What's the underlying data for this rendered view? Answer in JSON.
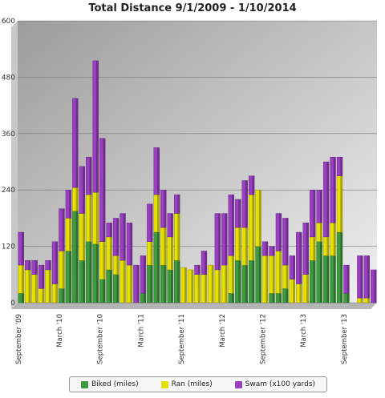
{
  "chart_data": {
    "type": "bar",
    "stacked": true,
    "title": "Total Distance 9/1/2009 - 1/10/2014",
    "xlabel": "",
    "ylabel": "",
    "ylim": [
      0,
      600
    ],
    "yticks": [
      0,
      120,
      240,
      360,
      480,
      600
    ],
    "grid": true,
    "legend_position": "bottom",
    "x_tick_labels": [
      {
        "label": "September '09",
        "index": 0
      },
      {
        "label": "March '10",
        "index": 6
      },
      {
        "label": "September '10",
        "index": 12
      },
      {
        "label": "March '11",
        "index": 18
      },
      {
        "label": "September '11",
        "index": 24
      },
      {
        "label": "March '12",
        "index": 30
      },
      {
        "label": "September '12",
        "index": 36
      },
      {
        "label": "March '13",
        "index": 42
      },
      {
        "label": "September '13",
        "index": 48
      }
    ],
    "categories": [
      "Sep 2009",
      "Oct 2009",
      "Nov 2009",
      "Dec 2009",
      "Jan 2010",
      "Feb 2010",
      "Mar 2010",
      "Apr 2010",
      "May 2010",
      "Jun 2010",
      "Jul 2010",
      "Aug 2010",
      "Sep 2010",
      "Oct 2010",
      "Nov 2010",
      "Dec 2010",
      "Jan 2011",
      "Feb 2011",
      "Mar 2011",
      "Apr 2011",
      "May 2011",
      "Jun 2011",
      "Jul 2011",
      "Aug 2011",
      "Sep 2011",
      "Oct 2011",
      "Nov 2011",
      "Dec 2011",
      "Jan 2012",
      "Feb 2012",
      "Mar 2012",
      "Apr 2012",
      "May 2012",
      "Jun 2012",
      "Jul 2012",
      "Aug 2012",
      "Sep 2012",
      "Oct 2012",
      "Nov 2012",
      "Dec 2012",
      "Jan 2013",
      "Feb 2013",
      "Mar 2013",
      "Apr 2013",
      "May 2013",
      "Jun 2013",
      "Jul 2013",
      "Aug 2013",
      "Sep 2013",
      "Oct 2013",
      "Nov 2013",
      "Dec 2013",
      "Jan 2014"
    ],
    "series": [
      {
        "name": "Biked (miles)",
        "color": "#3d9a3d",
        "values": [
          20,
          0,
          0,
          0,
          0,
          0,
          30,
          110,
          195,
          90,
          130,
          125,
          50,
          70,
          60,
          0,
          0,
          0,
          20,
          80,
          150,
          80,
          70,
          90,
          0,
          0,
          0,
          0,
          0,
          0,
          0,
          20,
          90,
          80,
          90,
          120,
          0,
          20,
          20,
          30,
          0,
          0,
          0,
          90,
          130,
          100,
          100,
          150,
          20,
          0,
          0,
          0,
          0
        ]
      },
      {
        "name": "Ran (miles)",
        "color": "#e6e000",
        "values": [
          60,
          70,
          60,
          30,
          70,
          40,
          80,
          70,
          50,
          100,
          100,
          110,
          80,
          70,
          40,
          90,
          80,
          0,
          0,
          50,
          80,
          80,
          70,
          100,
          75,
          70,
          60,
          60,
          80,
          70,
          80,
          80,
          70,
          80,
          140,
          120,
          100,
          80,
          90,
          50,
          50,
          40,
          60,
          50,
          40,
          40,
          70,
          120,
          0,
          0,
          10,
          10,
          0
        ]
      },
      {
        "name": "Swam (x100 yards)",
        "color": "#9a3fc2",
        "values": [
          70,
          20,
          30,
          50,
          20,
          90,
          90,
          60,
          190,
          100,
          80,
          280,
          220,
          30,
          80,
          100,
          90,
          80,
          80,
          80,
          100,
          80,
          50,
          40,
          0,
          0,
          20,
          50,
          0,
          120,
          110,
          130,
          60,
          100,
          40,
          0,
          30,
          20,
          80,
          100,
          50,
          110,
          110,
          100,
          70,
          160,
          140,
          40,
          60,
          0,
          90,
          90,
          70
        ]
      }
    ]
  },
  "legend": [
    {
      "label": "Biked (miles)",
      "color": "#3d9a3d"
    },
    {
      "label": "Ran (miles)",
      "color": "#e6e000"
    },
    {
      "label": "Swam (x100 yards)",
      "color": "#9a3fc2"
    }
  ]
}
